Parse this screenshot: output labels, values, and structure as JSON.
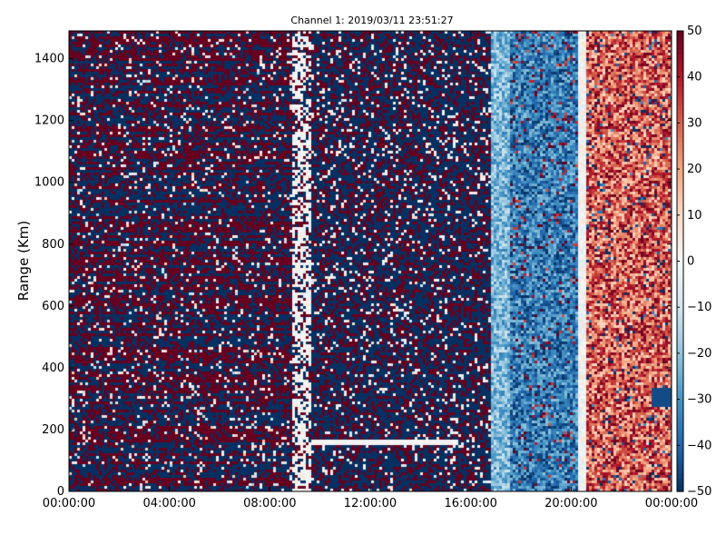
{
  "chart_data": {
    "type": "heatmap",
    "title": "Channel 1: 2019/03/11 23:51:27",
    "xlabel": "",
    "ylabel": "Range (Km)",
    "x_ticks": [
      "00:00:00",
      "04:00:00",
      "08:00:00",
      "12:00:00",
      "16:00:00",
      "20:00:00",
      "00:00:00"
    ],
    "x_tick_hours": [
      0,
      4,
      8,
      12,
      16,
      20,
      24
    ],
    "xlim_hours": [
      0,
      24
    ],
    "y_ticks": [
      0,
      200,
      400,
      600,
      800,
      1000,
      1200,
      1400
    ],
    "ylim": [
      0,
      1490
    ],
    "colorbar": {
      "ticks": [
        50,
        40,
        30,
        20,
        10,
        0,
        -10,
        -20,
        -30,
        -40,
        -50
      ],
      "range": [
        -50,
        50
      ],
      "colormap": "RdBu_r",
      "colors": [
        "#053061",
        "#2166ac",
        "#4393c3",
        "#92c5de",
        "#d1e5f0",
        "#f7f7f7",
        "#fddbc7",
        "#f4a582",
        "#d6604d",
        "#b2182b",
        "#67001f"
      ]
    },
    "grid": false
  }
}
